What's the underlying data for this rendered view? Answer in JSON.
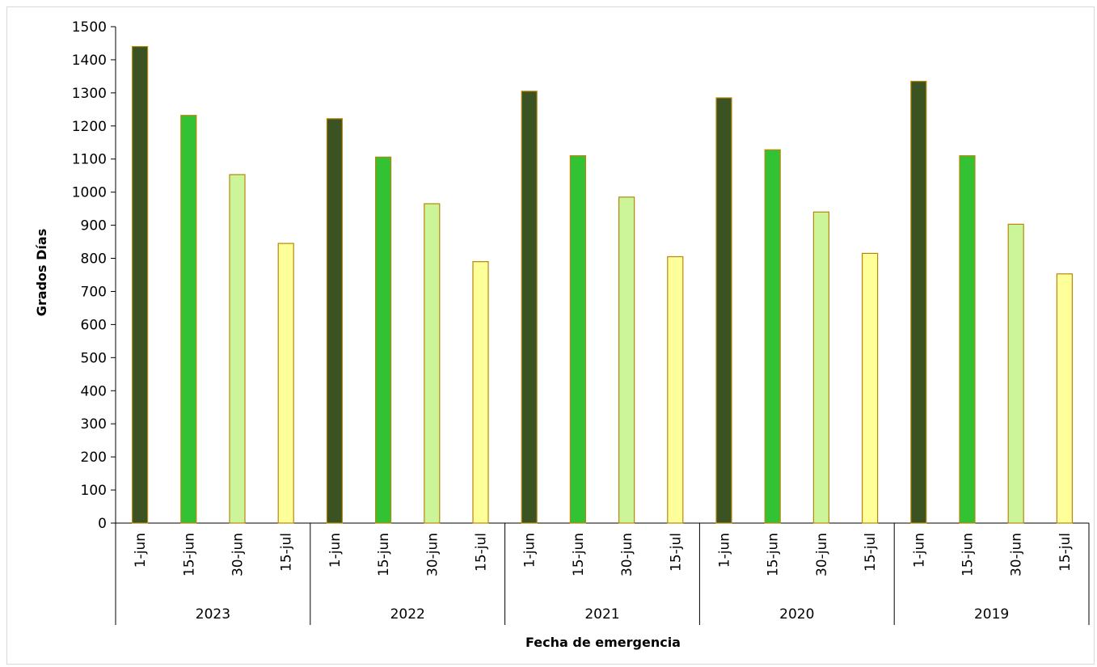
{
  "chart_data": {
    "type": "bar",
    "ylabel": "Grados Días",
    "xlabel": "Fecha de emergencia",
    "ylim": [
      0,
      1500
    ],
    "yticks": [
      0,
      100,
      200,
      300,
      400,
      500,
      600,
      700,
      800,
      900,
      1000,
      1100,
      1200,
      1300,
      1400,
      1500
    ],
    "grid": false,
    "legend": "none",
    "bar_border_color": "#b8860b",
    "category_colors": {
      "1-jun": "#3b5323",
      "15-jun": "#33c233",
      "30-jun": "#ccf59a",
      "15-jul": "#ffff99"
    },
    "groups": [
      {
        "name": "2023",
        "categories": [
          "1-jun",
          "15-jun",
          "30-jun",
          "15-jul"
        ],
        "values": [
          1440,
          1232,
          1053,
          845
        ]
      },
      {
        "name": "2022",
        "categories": [
          "1-jun",
          "15-jun",
          "30-jun",
          "15-jul"
        ],
        "values": [
          1222,
          1106,
          965,
          790
        ]
      },
      {
        "name": "2021",
        "categories": [
          "1-jun",
          "15-jun",
          "30-jun",
          "15-jul"
        ],
        "values": [
          1305,
          1110,
          985,
          805
        ]
      },
      {
        "name": "2020",
        "categories": [
          "1-jun",
          "15-jun",
          "30-jun",
          "15-jul"
        ],
        "values": [
          1285,
          1128,
          940,
          815
        ]
      },
      {
        "name": "2019",
        "categories": [
          "1-jun",
          "15-jun",
          "30-jun",
          "15-jul"
        ],
        "values": [
          1335,
          1110,
          903,
          753
        ]
      }
    ]
  }
}
